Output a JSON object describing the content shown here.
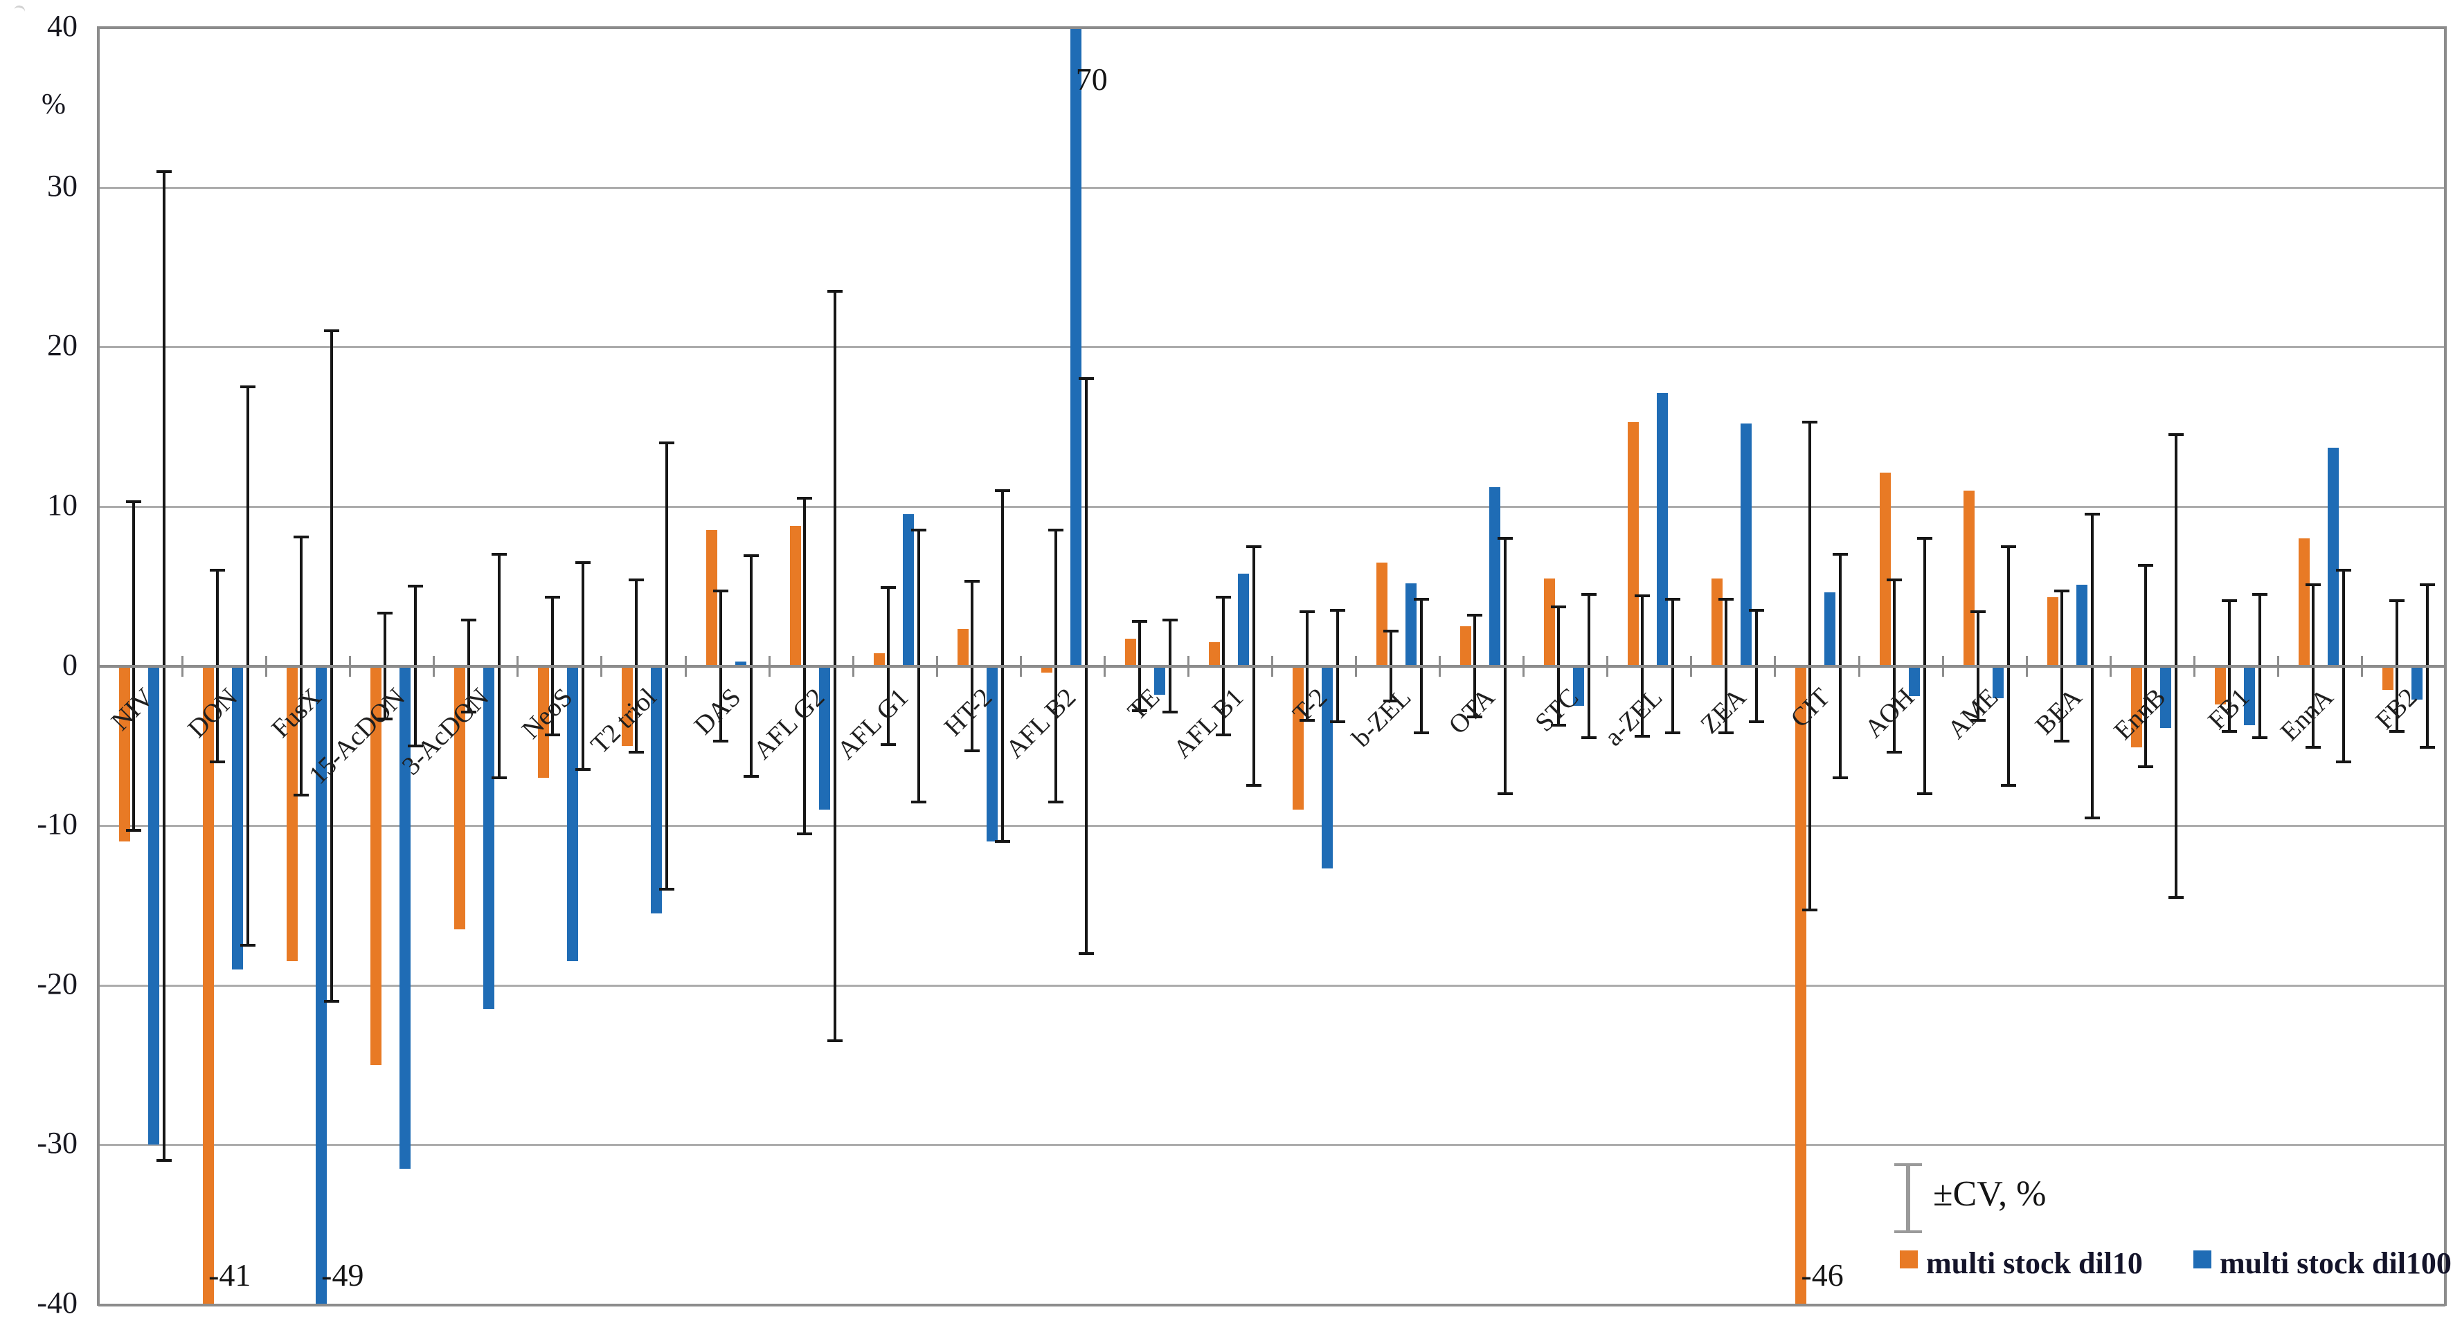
{
  "chart_data": {
    "type": "bar",
    "title": "",
    "xlabel": "",
    "ylabel": "%",
    "ylim": [
      -40,
      40
    ],
    "grid": true,
    "legend_position": "inside-bottom-right",
    "y_axis": {
      "unit": "%",
      "ticks": [
        "40",
        "30",
        "20",
        "10",
        "0",
        "-10",
        "-20",
        "-30",
        "-40"
      ],
      "tick_values": [
        40,
        30,
        20,
        10,
        0,
        -10,
        -20,
        -30,
        -40
      ]
    },
    "categories": [
      "NIV",
      "DON",
      "FusX",
      "15-AcDON",
      "3-AcDON",
      "NeoS",
      "T2 triol",
      "DAS",
      "AFL G2",
      "AFL G1",
      "HT-2",
      "AFL B2",
      "TE",
      "AFL B1",
      "T-2",
      "b-ZEL",
      "OTA",
      "STC",
      "a-ZEL",
      "ZEA",
      "CIT",
      "AOH",
      "AME",
      "BEA",
      "EnnB",
      "FB1",
      "EnnA",
      "FB2"
    ],
    "series": [
      {
        "name": "multi stock dil10",
        "color": "#E87A25",
        "values": [
          -11,
          -41,
          -18.5,
          -25,
          -16.5,
          -7,
          -5,
          8.5,
          8.8,
          0.8,
          2.3,
          -0.4,
          1.7,
          1.5,
          -9,
          6.5,
          2.5,
          5.5,
          15.3,
          5.5,
          -46,
          12.1,
          11,
          4.3,
          -5.1,
          -2.4,
          8,
          -1.5
        ],
        "cv": [
          10.3,
          6,
          8.1,
          3.3,
          2.9,
          4.3,
          5.4,
          4.7,
          10.5,
          4.9,
          5.3,
          8.5,
          2.8,
          4.3,
          3.4,
          2.2,
          3.2,
          3.7,
          4.4,
          4.2,
          15.3,
          5.4,
          3.4,
          4.7,
          6.3,
          4.1,
          5.1,
          4.1
        ]
      },
      {
        "name": "multi stock dil100",
        "color": "#1F6CB5",
        "values": [
          -30,
          -19,
          -49,
          -31.5,
          -21.5,
          -18.5,
          -15.5,
          0.3,
          -9,
          9.5,
          -11,
          70,
          -1.8,
          5.8,
          -12.7,
          5.2,
          11.2,
          -2.5,
          17.1,
          15.2,
          4.6,
          -1.9,
          -2,
          5.1,
          -3.9,
          -3.7,
          13.7,
          -2.1
        ],
        "cv": [
          31,
          17.5,
          21,
          5,
          7,
          6.5,
          14,
          6.9,
          23.5,
          8.5,
          11,
          18,
          2.9,
          7.5,
          3.5,
          4.2,
          8,
          4.5,
          4.2,
          3.5,
          7,
          8,
          7.5,
          9.5,
          14.5,
          4.5,
          6,
          5.1
        ]
      }
    ],
    "annotations": [
      {
        "category": "DON",
        "series": 0,
        "text": "-41"
      },
      {
        "category": "FusX",
        "series": 1,
        "text": "-49"
      },
      {
        "category": "AFL B2",
        "series": 1,
        "text": "70"
      },
      {
        "category": "CIT",
        "series": 0,
        "text": "-46"
      }
    ]
  },
  "legend": {
    "cv_label": "±CV, %",
    "items": [
      {
        "label": "multi stock dil10",
        "color": "#E87A25"
      },
      {
        "label": "multi stock dil100",
        "color": "#1F6CB5"
      }
    ]
  },
  "colors": {
    "gridline": "#ACACAC",
    "axis_border": "#8C8C8C",
    "error_bar": "#161616",
    "text": "#17171f"
  }
}
